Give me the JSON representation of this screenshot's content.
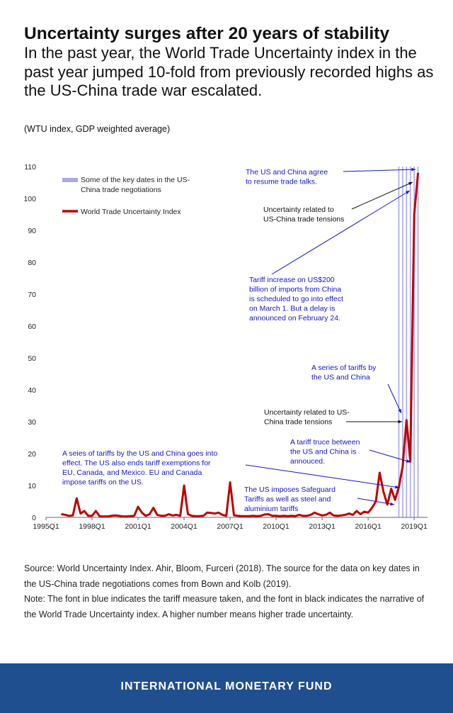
{
  "header": {
    "title": "Uncertainty surges after 20 years of stability",
    "subtitle": "In the past year, the World Trade Uncertainty index in the past year jumped 10-fold from previously recorded highs as the US-China trade war escalated.",
    "unit_note": "(WTU index, GDP weighted average)"
  },
  "chart_data": {
    "type": "line",
    "title": "",
    "xlabel": "",
    "ylabel": "",
    "ylim": [
      0,
      110
    ],
    "yticks": [
      0,
      10,
      20,
      30,
      40,
      50,
      60,
      70,
      80,
      90,
      100,
      110
    ],
    "xticks": [
      "1995Q1",
      "1998Q1",
      "2001Q1",
      "2004Q1",
      "2007Q1",
      "2010Q1",
      "2013Q1",
      "2016Q1",
      "2019Q1"
    ],
    "grid": false,
    "legend_position": "top-left",
    "series": [
      {
        "name": "World Trade Uncertainty Index",
        "color": "#c00000",
        "points": [
          [
            "1996Q1",
            1.0
          ],
          [
            "1996Q2",
            0.8
          ],
          [
            "1996Q3",
            0.5
          ],
          [
            "1996Q4",
            0.6
          ],
          [
            "1997Q1",
            6.0
          ],
          [
            "1997Q2",
            1.2
          ],
          [
            "1997Q3",
            2.0
          ],
          [
            "1997Q4",
            0.5
          ],
          [
            "1998Q1",
            0.5
          ],
          [
            "1998Q2",
            2.0
          ],
          [
            "1998Q3",
            0.3
          ],
          [
            "1998Q4",
            0.3
          ],
          [
            "1999Q1",
            0.3
          ],
          [
            "1999Q2",
            0.5
          ],
          [
            "1999Q3",
            0.6
          ],
          [
            "1999Q4",
            0.5
          ],
          [
            "2000Q1",
            0.3
          ],
          [
            "2000Q2",
            0.3
          ],
          [
            "2000Q3",
            0.4
          ],
          [
            "2000Q4",
            0.5
          ],
          [
            "2001Q1",
            3.3
          ],
          [
            "2001Q2",
            1.5
          ],
          [
            "2001Q3",
            0.5
          ],
          [
            "2001Q4",
            1.0
          ],
          [
            "2002Q1",
            3.0
          ],
          [
            "2002Q2",
            0.8
          ],
          [
            "2002Q3",
            0.5
          ],
          [
            "2002Q4",
            0.5
          ],
          [
            "2003Q1",
            1.0
          ],
          [
            "2003Q2",
            0.6
          ],
          [
            "2003Q3",
            0.8
          ],
          [
            "2003Q4",
            0.5
          ],
          [
            "2004Q1",
            10.0
          ],
          [
            "2004Q2",
            1.0
          ],
          [
            "2004Q3",
            0.5
          ],
          [
            "2004Q4",
            0.4
          ],
          [
            "2005Q1",
            0.4
          ],
          [
            "2005Q2",
            0.5
          ],
          [
            "2005Q3",
            1.5
          ],
          [
            "2005Q4",
            1.4
          ],
          [
            "2006Q1",
            1.2
          ],
          [
            "2006Q2",
            1.5
          ],
          [
            "2006Q3",
            0.8
          ],
          [
            "2006Q4",
            0.5
          ],
          [
            "2007Q1",
            11.0
          ],
          [
            "2007Q2",
            0.7
          ],
          [
            "2007Q3",
            0.5
          ],
          [
            "2007Q4",
            0.4
          ],
          [
            "2008Q1",
            0.4
          ],
          [
            "2008Q2",
            0.4
          ],
          [
            "2008Q3",
            0.5
          ],
          [
            "2008Q4",
            0.4
          ],
          [
            "2009Q1",
            0.5
          ],
          [
            "2009Q2",
            0.9
          ],
          [
            "2009Q3",
            1.0
          ],
          [
            "2009Q4",
            0.5
          ],
          [
            "2010Q1",
            0.5
          ],
          [
            "2010Q2",
            0.4
          ],
          [
            "2010Q3",
            0.5
          ],
          [
            "2010Q4",
            0.4
          ],
          [
            "2011Q1",
            0.5
          ],
          [
            "2011Q2",
            0.4
          ],
          [
            "2011Q3",
            0.8
          ],
          [
            "2011Q4",
            0.5
          ],
          [
            "2012Q1",
            0.5
          ],
          [
            "2012Q2",
            0.8
          ],
          [
            "2012Q3",
            1.5
          ],
          [
            "2012Q4",
            1.0
          ],
          [
            "2013Q1",
            0.6
          ],
          [
            "2013Q2",
            0.8
          ],
          [
            "2013Q3",
            1.5
          ],
          [
            "2013Q4",
            0.6
          ],
          [
            "2014Q1",
            0.5
          ],
          [
            "2014Q2",
            0.6
          ],
          [
            "2014Q3",
            0.8
          ],
          [
            "2014Q4",
            1.2
          ],
          [
            "2015Q1",
            0.8
          ],
          [
            "2015Q2",
            2.0
          ],
          [
            "2015Q3",
            1.0
          ],
          [
            "2015Q4",
            1.8
          ],
          [
            "2016Q1",
            1.5
          ],
          [
            "2016Q2",
            3.0
          ],
          [
            "2016Q3",
            5.0
          ],
          [
            "2016Q4",
            14.0
          ],
          [
            "2017Q1",
            8.0
          ],
          [
            "2017Q2",
            4.0
          ],
          [
            "2017Q3",
            9.0
          ],
          [
            "2017Q4",
            5.5
          ],
          [
            "2018Q1",
            9.5
          ],
          [
            "2018Q2",
            16.0
          ],
          [
            "2018Q3",
            30.5
          ],
          [
            "2018Q4",
            17.5
          ],
          [
            "2019Q1",
            95.0
          ],
          [
            "2019Q2",
            108.0
          ]
        ]
      },
      {
        "name": "Some of the key dates in the US-China trade negotiations",
        "type": "vline",
        "color": "#a9a9ee",
        "dates": [
          "2018Q1",
          "2018Q2",
          "2018Q3",
          "2018Q4",
          "2019Q1",
          "2019Q2"
        ]
      }
    ],
    "legend": [
      "Some of the key dates in the US-China trade negotiations",
      "World Trade Uncertainty Index"
    ],
    "annotations": [
      {
        "text": "The US and China agree to resume trade talks.",
        "color": "#1515c8"
      },
      {
        "text": "Uncertainty related to US-China trade tensions",
        "color": "#111111"
      },
      {
        "text": "Tariff increase on US$200 billion of imports from China is scheduled to go into effect on March 1. But a delay is announced on February 24.",
        "color": "#1515c8"
      },
      {
        "text": "A series of tariffs by the US and China",
        "color": "#1515c8"
      },
      {
        "text": "Uncertainty related to US-China trade tensions",
        "color": "#111111"
      },
      {
        "text": "A tariff truce between the US and China is annouced.",
        "color": "#1515c8"
      },
      {
        "text": "A seies of tariffs by the US and China goes into effect. The US also ends tariff exemptions for EU, Canada, and Mexico. EU and Canada impose tariffs on the US.",
        "color": "#1515c8"
      },
      {
        "text": "The US imposes Safeguard Tariffs as well as steel and aluminium tariffs",
        "color": "#1515c8"
      }
    ]
  },
  "source": {
    "line1": "Source: World Uncertainty Index. Ahir, Bloom, Furceri (2018). The source for the data on key dates in the US-China trade negotiations comes from Bown and Kolb (2019).",
    "line2": "Note: The font in blue indicates the tariff measure taken, and the font in black indicates the narrative of the World Trade Uncertainty index. A higher number means higher trade uncertainty."
  },
  "footer": {
    "org": "INTERNATIONAL MONETARY FUND",
    "color": "#1f4f8f"
  }
}
